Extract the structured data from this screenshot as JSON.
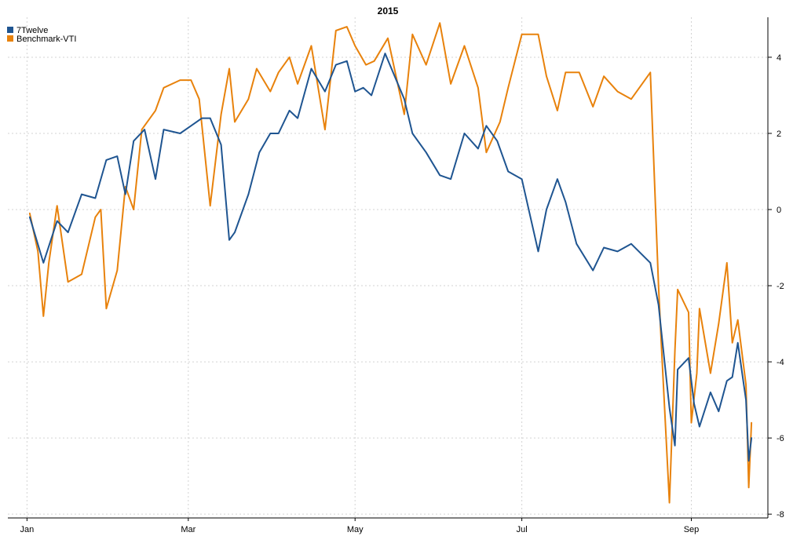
{
  "chart_data": {
    "type": "line",
    "title": "2015",
    "xlabel": "",
    "ylabel": "",
    "x_ticks": [
      "Jan",
      "Mar",
      "May",
      "Jul",
      "Sep"
    ],
    "y_ticks": [
      4,
      2,
      0,
      -2,
      -4,
      -6,
      -8
    ],
    "ylim": [
      -8.1,
      5.05
    ],
    "grid": true,
    "legend_position": "top-left",
    "colors": {
      "7Twelve": "#1f5591",
      "Benchmark-VTI": "#e8820c"
    },
    "series": [
      {
        "name": "7Twelve",
        "color": "#1f5591",
        "x": [
          "2015-01-02",
          "2015-01-07",
          "2015-01-12",
          "2015-01-16",
          "2015-01-21",
          "2015-01-26",
          "2015-01-30",
          "2015-02-03",
          "2015-02-06",
          "2015-02-09",
          "2015-02-13",
          "2015-02-17",
          "2015-02-20",
          "2015-02-26",
          "2015-03-02",
          "2015-03-06",
          "2015-03-09",
          "2015-03-13",
          "2015-03-16",
          "2015-03-18",
          "2015-03-23",
          "2015-03-27",
          "2015-03-31",
          "2015-04-03",
          "2015-04-07",
          "2015-04-10",
          "2015-04-15",
          "2015-04-20",
          "2015-04-24",
          "2015-04-28",
          "2015-05-01",
          "2015-05-04",
          "2015-05-07",
          "2015-05-12",
          "2015-05-19",
          "2015-05-22",
          "2015-05-27",
          "2015-06-01",
          "2015-06-05",
          "2015-06-10",
          "2015-06-15",
          "2015-06-18",
          "2015-06-22",
          "2015-06-26",
          "2015-07-01",
          "2015-07-07",
          "2015-07-10",
          "2015-07-14",
          "2015-07-17",
          "2015-07-21",
          "2015-07-27",
          "2015-07-31",
          "2015-08-05",
          "2015-08-10",
          "2015-08-17",
          "2015-08-20",
          "2015-08-24",
          "2015-08-26",
          "2015-08-27",
          "2015-08-31",
          "2015-09-02",
          "2015-09-04",
          "2015-09-08",
          "2015-09-11",
          "2015-09-14",
          "2015-09-16",
          "2015-09-18",
          "2015-09-21",
          "2015-09-22",
          "2015-09-23"
        ],
        "values": [
          -0.2,
          -1.4,
          -0.3,
          -0.6,
          0.4,
          0.3,
          1.3,
          1.4,
          0.4,
          1.8,
          2.1,
          0.8,
          2.1,
          2.0,
          2.2,
          2.4,
          2.4,
          1.7,
          -0.8,
          -0.6,
          0.4,
          1.5,
          2.0,
          2.0,
          2.6,
          2.4,
          3.7,
          3.1,
          3.8,
          3.9,
          3.1,
          3.2,
          3.0,
          4.1,
          2.9,
          2.0,
          1.5,
          0.9,
          0.8,
          2.0,
          1.6,
          2.2,
          1.8,
          1.0,
          0.8,
          -1.1,
          0.0,
          0.8,
          0.2,
          -0.9,
          -1.6,
          -1.0,
          -1.1,
          -0.9,
          -1.4,
          -2.5,
          -5.2,
          -6.2,
          -4.2,
          -3.9,
          -5.1,
          -5.7,
          -4.8,
          -5.3,
          -4.5,
          -4.4,
          -3.5,
          -5.0,
          -6.6,
          -6.0
        ]
      },
      {
        "name": "Benchmark-VTI",
        "color": "#e8820c",
        "x": [
          "2015-01-02",
          "2015-01-05",
          "2015-01-07",
          "2015-01-09",
          "2015-01-12",
          "2015-01-16",
          "2015-01-21",
          "2015-01-26",
          "2015-01-28",
          "2015-01-30",
          "2015-02-03",
          "2015-02-06",
          "2015-02-09",
          "2015-02-12",
          "2015-02-17",
          "2015-02-20",
          "2015-02-26",
          "2015-03-02",
          "2015-03-05",
          "2015-03-09",
          "2015-03-13",
          "2015-03-16",
          "2015-03-18",
          "2015-03-23",
          "2015-03-26",
          "2015-03-31",
          "2015-04-03",
          "2015-04-07",
          "2015-04-10",
          "2015-04-15",
          "2015-04-20",
          "2015-04-24",
          "2015-04-28",
          "2015-05-01",
          "2015-05-05",
          "2015-05-08",
          "2015-05-13",
          "2015-05-19",
          "2015-05-22",
          "2015-05-27",
          "2015-06-01",
          "2015-06-05",
          "2015-06-10",
          "2015-06-15",
          "2015-06-18",
          "2015-06-23",
          "2015-06-26",
          "2015-07-01",
          "2015-07-07",
          "2015-07-10",
          "2015-07-14",
          "2015-07-17",
          "2015-07-22",
          "2015-07-27",
          "2015-07-31",
          "2015-08-05",
          "2015-08-10",
          "2015-08-17",
          "2015-08-20",
          "2015-08-21",
          "2015-08-24",
          "2015-08-26",
          "2015-08-27",
          "2015-08-31",
          "2015-09-01",
          "2015-09-03",
          "2015-09-04",
          "2015-09-08",
          "2015-09-11",
          "2015-09-14",
          "2015-09-16",
          "2015-09-18",
          "2015-09-21",
          "2015-09-22",
          "2015-09-23"
        ],
        "values": [
          -0.1,
          -1.1,
          -2.8,
          -1.4,
          0.1,
          -1.9,
          -1.7,
          -0.2,
          0.0,
          -2.6,
          -1.6,
          0.6,
          0.0,
          2.1,
          2.6,
          3.2,
          3.4,
          3.4,
          2.9,
          0.1,
          2.5,
          3.7,
          2.3,
          2.9,
          3.7,
          3.1,
          3.6,
          4.0,
          3.3,
          4.3,
          2.1,
          4.7,
          4.8,
          4.3,
          3.8,
          3.9,
          4.5,
          2.5,
          4.6,
          3.8,
          4.9,
          3.3,
          4.3,
          3.2,
          1.5,
          2.3,
          3.2,
          4.6,
          4.6,
          3.5,
          2.6,
          3.6,
          3.6,
          2.7,
          3.5,
          3.1,
          2.9,
          3.6,
          -2.0,
          -3.5,
          -7.7,
          -3.7,
          -2.1,
          -2.7,
          -5.6,
          -4.3,
          -2.6,
          -4.3,
          -3.0,
          -1.4,
          -3.5,
          -2.9,
          -4.6,
          -7.3,
          -5.6
        ]
      }
    ]
  }
}
